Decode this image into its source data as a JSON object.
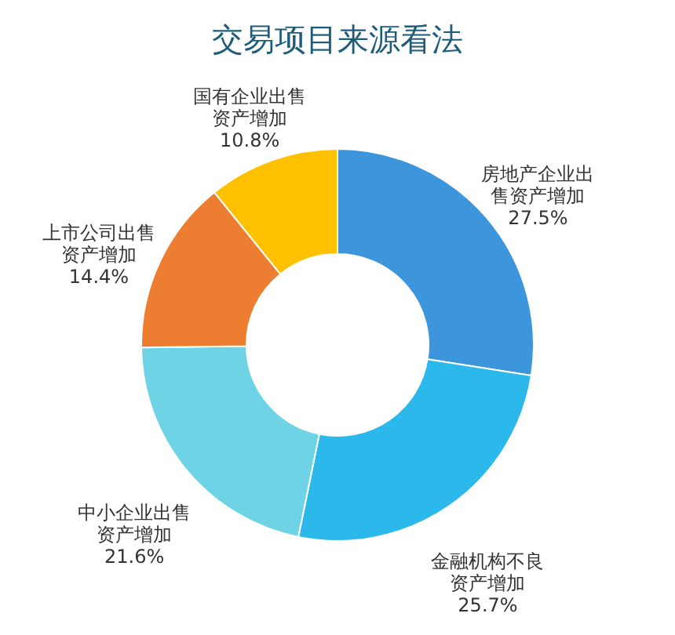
{
  "chart_data": {
    "type": "donut",
    "title": "交易项目来源看法",
    "categories": [
      "房地产企业出售资产增加",
      "金融机构不良资产增加",
      "中小企业出售资产增加",
      "上市公司出售资产增加",
      "国有企业出售资产增加"
    ],
    "values": [
      27.5,
      25.7,
      21.6,
      14.4,
      10.8
    ],
    "value_labels": [
      "27.5%",
      "25.7%",
      "21.6%",
      "14.4%",
      "10.8%"
    ],
    "colors": [
      "#3d95dc",
      "#2bb8ea",
      "#6fd3e6",
      "#ed7d31",
      "#ffc000"
    ]
  }
}
